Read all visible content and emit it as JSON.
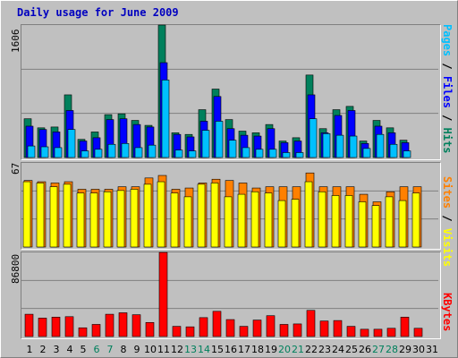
{
  "title": "Daily usage for June 2009",
  "colors": {
    "hits": "#00805c",
    "files": "#0000ff",
    "pages": "#00c0ff",
    "visits": "#ff8000",
    "sites": "#ffff00",
    "kbytes": "#ff0000",
    "gridline": "#808080",
    "weekend_day": "#00805c"
  },
  "legends": {
    "top": {
      "pages": "Pages",
      "sep1": " / ",
      "files": "Files",
      "sep2": " / ",
      "hits": "Hits"
    },
    "middle": {
      "sites": "Sites",
      "sep": " / ",
      "visits": "Visits"
    },
    "bottom": {
      "kbytes": "KBytes"
    }
  },
  "axis_max_labels": {
    "top": "1606",
    "middle": "67",
    "bottom": "86800"
  },
  "chart_data": [
    {
      "type": "bar",
      "title": "",
      "ylim": [
        0,
        1606
      ],
      "categories": [
        "1",
        "2",
        "3",
        "4",
        "5",
        "6",
        "7",
        "8",
        "9",
        "10",
        "11",
        "12",
        "13",
        "14",
        "15",
        "16",
        "17",
        "18",
        "19",
        "20",
        "21",
        "22",
        "23",
        "24",
        "25",
        "26",
        "27",
        "28",
        "29",
        "30",
        "31"
      ],
      "series": [
        {
          "name": "Hits",
          "values": [
            470,
            360,
            370,
            760,
            220,
            310,
            520,
            530,
            450,
            390,
            1606,
            300,
            280,
            580,
            830,
            460,
            320,
            300,
            400,
            200,
            240,
            1000,
            350,
            580,
            620,
            200,
            450,
            360,
            210,
            0,
            0
          ]
        },
        {
          "name": "Files",
          "values": [
            380,
            340,
            310,
            570,
            200,
            240,
            460,
            470,
            400,
            370,
            1150,
            280,
            250,
            440,
            740,
            350,
            270,
            260,
            350,
            180,
            200,
            760,
            300,
            510,
            570,
            170,
            380,
            300,
            180,
            0,
            0
          ]
        },
        {
          "name": "Pages",
          "values": [
            140,
            130,
            120,
            340,
            80,
            100,
            160,
            170,
            120,
            150,
            940,
            90,
            80,
            330,
            440,
            210,
            120,
            100,
            100,
            60,
            60,
            470,
            290,
            270,
            260,
            110,
            280,
            160,
            80,
            0,
            0
          ]
        }
      ]
    },
    {
      "type": "bar",
      "title": "",
      "ylim": [
        0,
        67
      ],
      "categories": [
        "1",
        "2",
        "3",
        "4",
        "5",
        "6",
        "7",
        "8",
        "9",
        "10",
        "11",
        "12",
        "13",
        "14",
        "15",
        "16",
        "17",
        "18",
        "19",
        "20",
        "21",
        "22",
        "23",
        "24",
        "25",
        "26",
        "27",
        "28",
        "29",
        "30",
        "31"
      ],
      "series": [
        {
          "name": "Visits",
          "values": [
            53,
            52,
            51,
            52,
            46,
            46,
            46,
            48,
            48,
            55,
            57,
            46,
            47,
            51,
            54,
            53,
            51,
            47,
            48,
            48,
            48,
            59,
            48,
            48,
            48,
            42,
            36,
            44,
            48,
            48,
            0
          ]
        },
        {
          "name": "Sites",
          "values": [
            52,
            51,
            48,
            50,
            43,
            43,
            44,
            45,
            46,
            50,
            52,
            43,
            40,
            50,
            51,
            40,
            42,
            44,
            43,
            37,
            38,
            52,
            44,
            41,
            41,
            36,
            33,
            40,
            37,
            43,
            0
          ]
        }
      ]
    },
    {
      "type": "bar",
      "title": "",
      "ylim": [
        0,
        86800
      ],
      "categories": [
        "1",
        "2",
        "3",
        "4",
        "5",
        "6",
        "7",
        "8",
        "9",
        "10",
        "11",
        "12",
        "13",
        "14",
        "15",
        "16",
        "17",
        "18",
        "19",
        "20",
        "21",
        "22",
        "23",
        "24",
        "25",
        "26",
        "27",
        "28",
        "29",
        "30",
        "31"
      ],
      "series": [
        {
          "name": "KBytes",
          "values": [
            23000,
            19000,
            20000,
            20500,
            9000,
            12500,
            23000,
            24500,
            22500,
            14500,
            86800,
            10500,
            10000,
            19500,
            26000,
            17500,
            10500,
            17000,
            21500,
            12500,
            13000,
            27000,
            16000,
            16500,
            10500,
            7500,
            7500,
            8500,
            20000,
            8500,
            0
          ]
        }
      ]
    }
  ],
  "weekend_days": [
    6,
    7,
    13,
    14,
    20,
    21,
    27,
    28
  ]
}
